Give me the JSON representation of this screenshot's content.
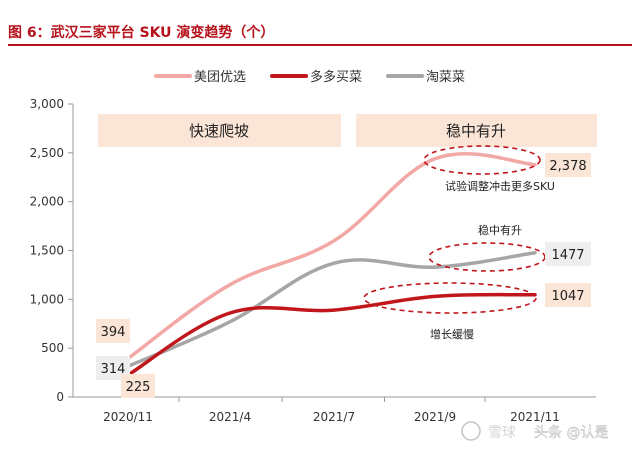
{
  "figure_title": "图 6：武汉三家平台 SKU 演变趋势（个）",
  "watermark": "头条 @认是",
  "watermark_logo_text": "雪球",
  "colors": {
    "title": "#b5121b",
    "meituan": "#f2a8a4",
    "duoduo": "#c0161c",
    "taocai": "#a6a6a6",
    "phase_box": "#fbe5d6",
    "annotation": "#c0161c"
  },
  "chart_data": {
    "type": "line",
    "title": "",
    "xlabel": "",
    "ylabel": "",
    "ylim": [
      0,
      3000
    ],
    "yticks": [
      0,
      500,
      1000,
      1500,
      2000,
      2500,
      3000
    ],
    "ytick_labels": [
      "0",
      "500",
      "1,000",
      "1,500",
      "2,000",
      "2,500",
      "3,000"
    ],
    "categories": [
      "2020/11",
      "2021/4",
      "2021/7",
      "2021/9",
      "2021/11"
    ],
    "legend_position": "top",
    "grid": false,
    "series": [
      {
        "name": "美团优选",
        "color_key": "meituan",
        "values": [
          394,
          1150,
          1600,
          2440,
          2378
        ],
        "start_label": "394",
        "end_label": "2,378"
      },
      {
        "name": "多多买菜",
        "color_key": "duoduo",
        "values": [
          225,
          860,
          890,
          1030,
          1047
        ],
        "start_label": "225",
        "end_label": "1047"
      },
      {
        "name": "淘菜菜",
        "color_key": "taocai",
        "values": [
          314,
          770,
          1370,
          1330,
          1477
        ],
        "start_label": "314",
        "end_label": "1477"
      }
    ],
    "phases": [
      "快速爬坡",
      "稳中有升"
    ],
    "annotations": [
      "试验调整冲击更多SKU",
      "稳中有升",
      "增长缓慢"
    ]
  }
}
